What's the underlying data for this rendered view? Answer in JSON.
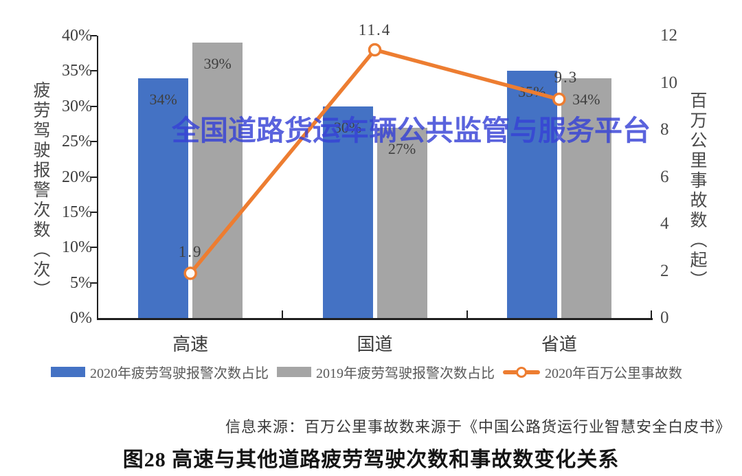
{
  "watermark": "全国道路货运车辆公共监管与服务平台",
  "colors": {
    "bar_2020": "#4472c4",
    "bar_2019": "#a5a5a5",
    "line_2020": "#ed7d31",
    "watermark": "#3642d6",
    "axis": "#1f1f1f"
  },
  "chart_data": {
    "type": "bar+line combo",
    "categories": [
      "高速",
      "国道",
      "省道"
    ],
    "series": [
      {
        "name": "2020年疲劳驾驶报警次数占比",
        "type": "bar",
        "axis": "left",
        "values": [
          34,
          30,
          35
        ],
        "labels": [
          "34%",
          "30%",
          "35%"
        ],
        "color": "#4472c4"
      },
      {
        "name": "2019年疲劳驾驶报警次数占比",
        "type": "bar",
        "axis": "left",
        "values": [
          39,
          27,
          34
        ],
        "labels": [
          "39%",
          "27%",
          "34%"
        ],
        "color": "#a5a5a5"
      },
      {
        "name": "2020年百万公里事故数",
        "type": "line",
        "axis": "right",
        "values": [
          1.9,
          11.4,
          9.3
        ],
        "labels": [
          "1.9",
          "11.4",
          "9.3"
        ],
        "color": "#ed7d31"
      }
    ],
    "left_axis": {
      "title": "疲劳驾驶报警次数（次）",
      "min": 0,
      "max": 40,
      "step": 5,
      "ticks": [
        "0%",
        "5%",
        "10%",
        "15%",
        "20%",
        "25%",
        "30%",
        "35%",
        "40%"
      ]
    },
    "right_axis": {
      "title": "百万公里事故数（起）",
      "min": 0,
      "max": 12,
      "step": 2,
      "ticks": [
        "0",
        "2",
        "4",
        "6",
        "8",
        "10",
        "12"
      ]
    },
    "grid": false,
    "legend_position": "bottom"
  },
  "source_note": "信息来源：百万公里事故数来源于《中国公路货运行业智慧安全白皮书》",
  "caption": "图28 高速与其他道路疲劳驾驶次数和事故数变化关系"
}
